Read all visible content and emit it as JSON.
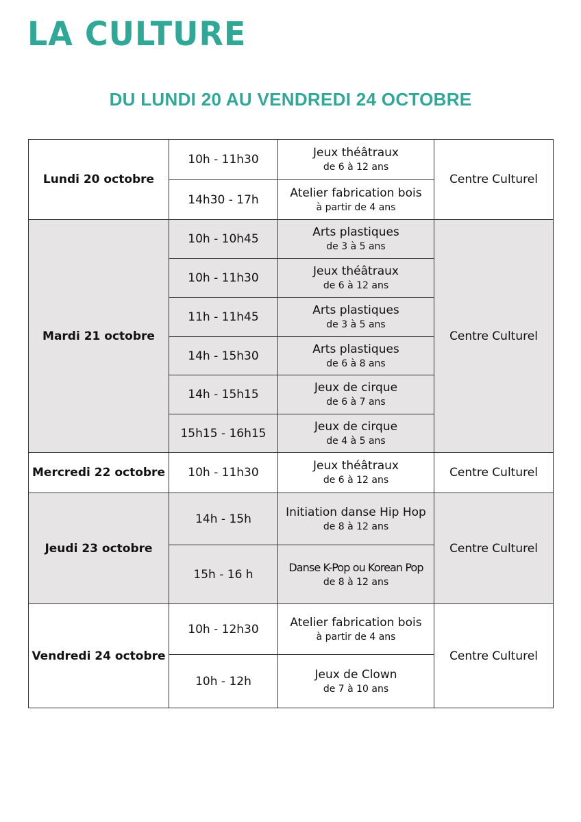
{
  "header": {
    "logo": "LA CULTURE",
    "subtitle": "DU LUNDI 20 AU VENDREDI 24 OCTOBRE"
  },
  "colors": {
    "accent": "#2fa898",
    "shaded_row": "#e6e4e5"
  },
  "schedule": [
    {
      "day": "Lundi 20 octobre",
      "location": "Centre Culturel",
      "shaded": false,
      "sessions": [
        {
          "time": "10h - 11h30",
          "activity": "Jeux théâtraux",
          "ages": "de 6 à 12 ans"
        },
        {
          "time": "14h30 - 17h",
          "activity": "Atelier fabrication bois",
          "ages": "à partir de 4 ans"
        }
      ]
    },
    {
      "day": "Mardi 21 octobre",
      "location": "Centre Culturel",
      "shaded": true,
      "sessions": [
        {
          "time": "10h - 10h45",
          "activity": "Arts plastiques",
          "ages": "de 3 à 5 ans"
        },
        {
          "time": "10h - 11h30",
          "activity": "Jeux théâtraux",
          "ages": "de 6 à 12 ans"
        },
        {
          "time": "11h - 11h45",
          "activity": "Arts plastiques",
          "ages": "de 3 à 5 ans"
        },
        {
          "time": "14h - 15h30",
          "activity": "Arts plastiques",
          "ages": "de 6 à 8 ans"
        },
        {
          "time": "14h - 15h15",
          "activity": "Jeux de cirque",
          "ages": "de 6 à 7 ans"
        },
        {
          "time": "15h15 - 16h15",
          "activity": "Jeux de cirque",
          "ages": "de 4 à 5 ans"
        }
      ]
    },
    {
      "day": "Mercredi 22 octobre",
      "location": "Centre Culturel",
      "shaded": false,
      "sessions": [
        {
          "time": "10h - 11h30",
          "activity": "Jeux théâtraux",
          "ages": "de 6 à 12 ans"
        }
      ]
    },
    {
      "day": "Jeudi 23 octobre",
      "location": "Centre Culturel",
      "shaded": true,
      "sessions": [
        {
          "time": "14h - 15h",
          "activity": "Initiation danse Hip Hop",
          "ages": "de 8 à 12 ans"
        },
        {
          "time": "15h - 16 h",
          "activity": "Danse K-Pop ou Korean Pop",
          "ages": "de 8 à 12 ans"
        }
      ]
    },
    {
      "day": "Vendredi 24 octobre",
      "location": "Centre Culturel",
      "shaded": false,
      "sessions": [
        {
          "time": "10h - 12h30",
          "activity": "Atelier fabrication bois",
          "ages": "à partir de 4 ans"
        },
        {
          "time": "10h - 12h",
          "activity": "Jeux de Clown",
          "ages": "de 7 à 10 ans"
        }
      ]
    }
  ]
}
